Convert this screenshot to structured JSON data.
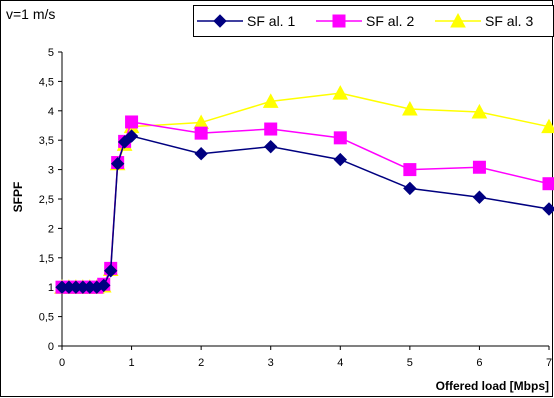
{
  "annotation": "v=1 m/s",
  "chart_data": {
    "type": "line",
    "title": "",
    "xlabel": "Offered load [Mbps]",
    "ylabel": "SFPF",
    "xlim": [
      0,
      7
    ],
    "ylim": [
      0,
      5
    ],
    "x_ticks": [
      0,
      1,
      2,
      3,
      4,
      5,
      6,
      7
    ],
    "y_ticks": [
      0,
      0.5,
      1,
      1.5,
      2,
      2.5,
      3,
      3.5,
      4,
      4.5,
      5
    ],
    "y_tick_labels": [
      "0",
      "0,5",
      "1",
      "1,5",
      "2",
      "2,5",
      "3",
      "3,5",
      "4",
      "4,5",
      "5"
    ],
    "grid": "none",
    "legend_position": "top",
    "series": [
      {
        "name": "SF al. 1",
        "color": "#000080",
        "marker": "diamond",
        "x": [
          0,
          0.1,
          0.2,
          0.3,
          0.4,
          0.5,
          0.6,
          0.7,
          0.8,
          0.9,
          1,
          2,
          3,
          4,
          5,
          6,
          7
        ],
        "y": [
          1,
          1,
          1,
          1,
          1,
          1,
          1.03,
          1.28,
          3.1,
          3.47,
          3.57,
          3.27,
          3.39,
          3.17,
          2.68,
          2.53,
          2.33
        ]
      },
      {
        "name": "SF al. 2",
        "color": "#FF00FF",
        "marker": "square",
        "x": [
          0,
          0.1,
          0.2,
          0.3,
          0.4,
          0.5,
          0.6,
          0.7,
          0.8,
          0.9,
          1,
          2,
          3,
          4,
          5,
          6,
          7
        ],
        "y": [
          1,
          1,
          1,
          1,
          1,
          1,
          1.05,
          1.32,
          3.12,
          3.48,
          3.81,
          3.62,
          3.69,
          3.54,
          3.0,
          3.04,
          2.76
        ]
      },
      {
        "name": "SF al. 3",
        "color": "#FFFF00",
        "marker": "triangle",
        "x": [
          0,
          0.1,
          0.2,
          0.3,
          0.4,
          0.5,
          0.6,
          0.7,
          0.8,
          0.9,
          1,
          2,
          3,
          4,
          5,
          6,
          7
        ],
        "y": [
          1,
          1,
          1,
          1,
          1,
          1,
          1.02,
          1.3,
          3.1,
          3.43,
          3.73,
          3.8,
          4.16,
          4.3,
          4.03,
          3.98,
          3.73
        ]
      }
    ]
  }
}
